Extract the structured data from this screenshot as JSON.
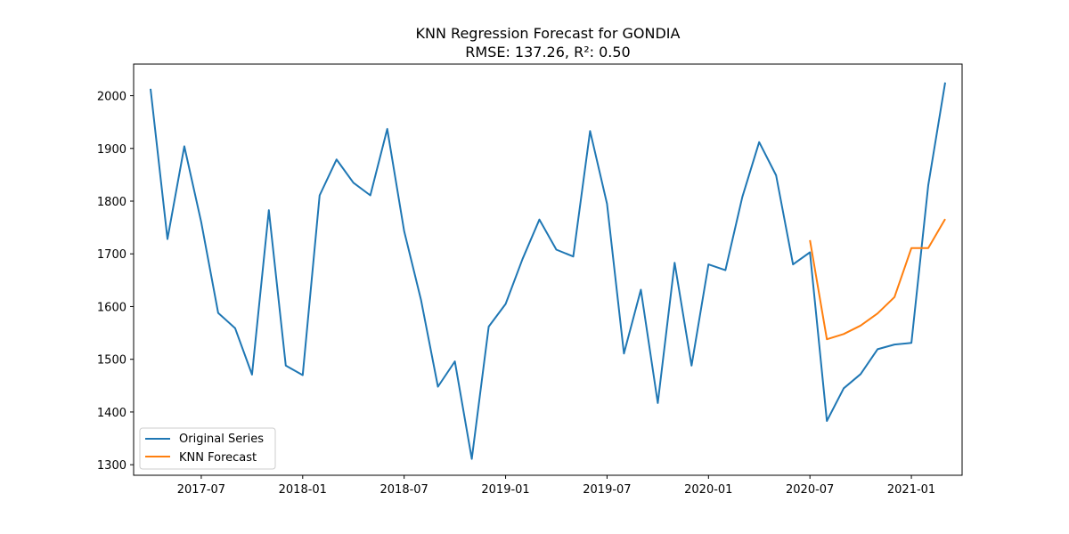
{
  "chart_data": {
    "type": "line",
    "title": "KNN Regression Forecast for GONDIA",
    "subtitle": "RMSE: 137.26, R²: 0.50",
    "xlabel": "",
    "ylabel": "",
    "xlim": [
      "2017-03-01",
      "2021-04-01"
    ],
    "ylim": [
      1280,
      2060
    ],
    "x_ticks": [
      "2017-07",
      "2018-01",
      "2018-07",
      "2019-01",
      "2019-07",
      "2020-01",
      "2020-07",
      "2021-01"
    ],
    "y_ticks": [
      1300,
      1400,
      1500,
      1600,
      1700,
      1800,
      1900,
      2000
    ],
    "grid": false,
    "legend_position": "lower-left",
    "series": [
      {
        "name": "Original Series",
        "color": "#1f77b4",
        "x": [
          "2017-04",
          "2017-05",
          "2017-06",
          "2017-07",
          "2017-08",
          "2017-09",
          "2017-10",
          "2017-11",
          "2017-12",
          "2018-01",
          "2018-02",
          "2018-03",
          "2018-04",
          "2018-05",
          "2018-06",
          "2018-07",
          "2018-08",
          "2018-09",
          "2018-10",
          "2018-11",
          "2018-12",
          "2019-01",
          "2019-02",
          "2019-03",
          "2019-04",
          "2019-05",
          "2019-06",
          "2019-07",
          "2019-08",
          "2019-09",
          "2019-10",
          "2019-11",
          "2019-12",
          "2020-01",
          "2020-02",
          "2020-03",
          "2020-04",
          "2020-05",
          "2020-06",
          "2020-07",
          "2020-08",
          "2020-09",
          "2020-10",
          "2020-11",
          "2020-12",
          "2021-01",
          "2021-02",
          "2021-03"
        ],
        "values": [
          2013,
          1728,
          1904,
          1760,
          1588,
          1559,
          1471,
          1783,
          1488,
          1470,
          1811,
          1879,
          1835,
          1811,
          1937,
          1743,
          1612,
          1448,
          1496,
          1311,
          1562,
          1605,
          1690,
          1765,
          1708,
          1695,
          1933,
          1795,
          1511,
          1632,
          1417,
          1683,
          1488,
          1680,
          1669,
          1808,
          1912,
          1849,
          1680,
          1703,
          1383,
          1445,
          1472,
          1519,
          1528,
          1531,
          1830,
          2025
        ]
      },
      {
        "name": "KNN Forecast",
        "color": "#ff7f0e",
        "x": [
          "2020-07",
          "2020-08",
          "2020-09",
          "2020-10",
          "2020-11",
          "2020-12",
          "2021-01",
          "2021-02",
          "2021-03"
        ],
        "values": [
          1726,
          1538,
          1548,
          1564,
          1587,
          1618,
          1711,
          1711,
          1766
        ]
      }
    ]
  }
}
